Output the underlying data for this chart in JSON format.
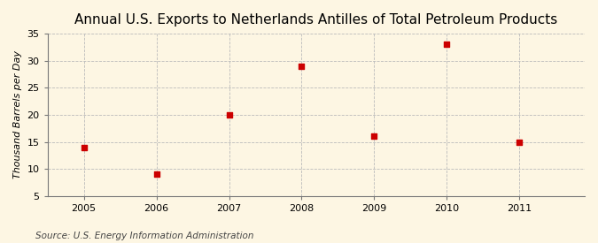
{
  "title": "Annual U.S. Exports to Netherlands Antilles of Total Petroleum Products",
  "ylabel": "Thousand Barrels per Day",
  "source": "Source: U.S. Energy Information Administration",
  "x": [
    2005,
    2006,
    2007,
    2008,
    2009,
    2010,
    2011
  ],
  "y": [
    14,
    9,
    20,
    29,
    16,
    33,
    15
  ],
  "marker_color": "#cc0000",
  "marker": "s",
  "marker_size": 4,
  "xlim": [
    2004.5,
    2011.9
  ],
  "ylim": [
    5,
    35
  ],
  "yticks": [
    5,
    10,
    15,
    20,
    25,
    30,
    35
  ],
  "xticks": [
    2005,
    2006,
    2007,
    2008,
    2009,
    2010,
    2011
  ],
  "background_color": "#fdf6e3",
  "plot_bg_color": "#fdf6e3",
  "grid_color": "#bbbbbb",
  "title_fontsize": 11,
  "label_fontsize": 8,
  "tick_fontsize": 8,
  "source_fontsize": 7.5
}
